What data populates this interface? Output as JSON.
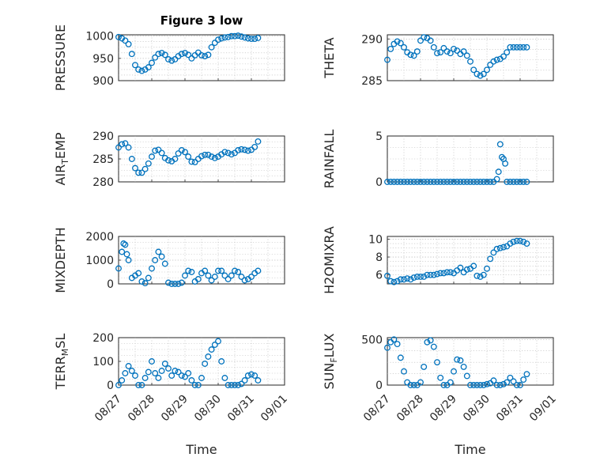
{
  "figure": {
    "title": "Figure 3 low",
    "marker_color": "#0072BD",
    "marker_style": "open-circle"
  },
  "chart_data": [
    {
      "type": "scatter",
      "ylabel": "PRESSURE",
      "ylabel_base": "PRESSURE",
      "ylabel_sub": "",
      "title": "Figure 3 low",
      "yticks": [
        900,
        950,
        1000
      ],
      "yticklabels": [
        "900",
        "950",
        "1000"
      ],
      "ylim": [
        900,
        1003
      ],
      "xlim": [
        0,
        5
      ],
      "xticks": [
        0,
        1,
        2,
        3,
        4,
        5
      ],
      "grid": true,
      "x": [
        0.0,
        0.1,
        0.2,
        0.3,
        0.4,
        0.5,
        0.6,
        0.7,
        0.8,
        0.9,
        1.0,
        1.1,
        1.2,
        1.3,
        1.4,
        1.5,
        1.6,
        1.7,
        1.8,
        1.9,
        2.0,
        2.1,
        2.2,
        2.3,
        2.4,
        2.5,
        2.6,
        2.7,
        2.8,
        2.9,
        3.0,
        3.1,
        3.2,
        3.3,
        3.4,
        3.5,
        3.6,
        3.7,
        3.8,
        3.9,
        4.0,
        4.1,
        4.2
      ],
      "y": [
        998,
        995,
        990,
        982,
        960,
        935,
        925,
        922,
        925,
        930,
        940,
        952,
        960,
        962,
        958,
        948,
        945,
        948,
        955,
        960,
        962,
        958,
        950,
        957,
        963,
        957,
        955,
        958,
        975,
        985,
        992,
        995,
        997,
        998,
        1000,
        1000,
        1001,
        999,
        997,
        995,
        994,
        994,
        996
      ]
    },
    {
      "type": "scatter",
      "ylabel": "THETA",
      "ylabel_base": "THETA",
      "ylabel_sub": "",
      "yticks": [
        285,
        290
      ],
      "yticklabels": [
        "285",
        "290"
      ],
      "ylim": [
        285,
        290.5
      ],
      "xlim": [
        0,
        5
      ],
      "xticks": [
        0,
        1,
        2,
        3,
        4,
        5
      ],
      "grid": true,
      "x": [
        0.0,
        0.1,
        0.2,
        0.3,
        0.4,
        0.5,
        0.6,
        0.7,
        0.8,
        0.9,
        1.0,
        1.1,
        1.2,
        1.3,
        1.4,
        1.5,
        1.6,
        1.7,
        1.8,
        1.9,
        2.0,
        2.1,
        2.2,
        2.3,
        2.4,
        2.5,
        2.6,
        2.7,
        2.8,
        2.9,
        3.0,
        3.1,
        3.2,
        3.3,
        3.4,
        3.5,
        3.6,
        3.7,
        3.8,
        3.9,
        4.0,
        4.1,
        4.2
      ],
      "y": [
        287.5,
        288.8,
        289.4,
        289.7,
        289.5,
        289.0,
        288.4,
        288.1,
        288.0,
        288.5,
        289.8,
        290.2,
        290.1,
        289.8,
        289.0,
        288.3,
        288.4,
        288.9,
        288.5,
        288.3,
        288.8,
        288.6,
        288.2,
        288.5,
        288.0,
        287.3,
        286.3,
        285.8,
        285.6,
        285.8,
        286.3,
        286.9,
        287.3,
        287.5,
        287.6,
        287.9,
        288.4,
        289.0,
        289.0,
        289.0,
        289.0,
        289.0,
        289.0
      ]
    },
    {
      "type": "scatter",
      "ylabel": "AIR_TEMP",
      "ylabel_base": "AIR",
      "ylabel_sub": "T",
      "ylabel_rest": "EMP",
      "yticks": [
        280,
        285,
        290
      ],
      "yticklabels": [
        "280",
        "285",
        "290"
      ],
      "ylim": [
        280,
        290
      ],
      "xlim": [
        0,
        5
      ],
      "xticks": [
        0,
        1,
        2,
        3,
        4,
        5
      ],
      "grid": true,
      "x": [
        0.0,
        0.1,
        0.2,
        0.3,
        0.4,
        0.5,
        0.6,
        0.7,
        0.8,
        0.9,
        1.0,
        1.1,
        1.2,
        1.3,
        1.4,
        1.5,
        1.6,
        1.7,
        1.8,
        1.9,
        2.0,
        2.1,
        2.2,
        2.3,
        2.4,
        2.5,
        2.6,
        2.7,
        2.8,
        2.9,
        3.0,
        3.1,
        3.2,
        3.3,
        3.4,
        3.5,
        3.6,
        3.7,
        3.8,
        3.9,
        4.0,
        4.1,
        4.2
      ],
      "y": [
        287.5,
        288.2,
        288.4,
        287.5,
        285.0,
        283.0,
        282.0,
        282.0,
        282.8,
        284.0,
        285.5,
        286.8,
        287.0,
        286.3,
        285.2,
        284.7,
        284.5,
        285.0,
        286.2,
        286.9,
        286.5,
        285.5,
        284.4,
        284.3,
        285.0,
        285.6,
        285.9,
        285.9,
        285.5,
        285.2,
        285.5,
        286.0,
        286.5,
        286.3,
        286.0,
        286.3,
        286.9,
        287.1,
        287.0,
        286.8,
        287.0,
        287.6,
        288.8
      ]
    },
    {
      "type": "scatter",
      "ylabel": "RAINFALL",
      "ylabel_base": "RAINFALL",
      "ylabel_sub": "",
      "yticks": [
        0,
        5
      ],
      "yticklabels": [
        "0",
        "5"
      ],
      "ylim": [
        0,
        5
      ],
      "xlim": [
        0,
        5
      ],
      "xticks": [
        0,
        1,
        2,
        3,
        4,
        5
      ],
      "grid": true,
      "x": [
        0.0,
        0.1,
        0.2,
        0.3,
        0.4,
        0.5,
        0.6,
        0.7,
        0.8,
        0.9,
        1.0,
        1.1,
        1.2,
        1.3,
        1.4,
        1.5,
        1.6,
        1.7,
        1.8,
        1.9,
        2.0,
        2.1,
        2.2,
        2.3,
        2.4,
        2.5,
        2.6,
        2.7,
        2.8,
        2.9,
        3.0,
        3.1,
        3.2,
        3.3,
        3.35,
        3.4,
        3.45,
        3.5,
        3.55,
        3.6,
        3.7,
        3.8,
        3.9,
        4.0,
        4.1,
        4.2
      ],
      "y": [
        0,
        0,
        0,
        0,
        0,
        0,
        0,
        0,
        0,
        0,
        0,
        0,
        0,
        0,
        0,
        0,
        0,
        0,
        0,
        0,
        0,
        0,
        0,
        0,
        0,
        0,
        0,
        0,
        0,
        0,
        0,
        0,
        0,
        0.3,
        1.1,
        4.1,
        2.7,
        2.5,
        2.0,
        0,
        0,
        0,
        0,
        0,
        0,
        0
      ]
    },
    {
      "type": "scatter",
      "ylabel": "MIXDEPTH",
      "ylabel_base": "MIXDEPTH",
      "ylabel_sub": "",
      "yticks": [
        0,
        1000,
        2000
      ],
      "yticklabels": [
        "0",
        "1000",
        "2000"
      ],
      "ylim": [
        0,
        2000
      ],
      "xlim": [
        0,
        5
      ],
      "xticks": [
        0,
        1,
        2,
        3,
        4,
        5
      ],
      "grid": true,
      "x": [
        0.0,
        0.1,
        0.15,
        0.2,
        0.25,
        0.3,
        0.4,
        0.5,
        0.6,
        0.7,
        0.8,
        0.9,
        1.0,
        1.1,
        1.2,
        1.3,
        1.4,
        1.5,
        1.6,
        1.7,
        1.8,
        1.9,
        2.0,
        2.1,
        2.2,
        2.3,
        2.4,
        2.5,
        2.6,
        2.7,
        2.8,
        2.9,
        3.0,
        3.1,
        3.2,
        3.3,
        3.4,
        3.5,
        3.6,
        3.7,
        3.8,
        3.9,
        4.0,
        4.1,
        4.2
      ],
      "y": [
        650,
        1350,
        1700,
        1650,
        1250,
        1000,
        250,
        350,
        450,
        100,
        30,
        250,
        650,
        1000,
        1350,
        1150,
        850,
        50,
        0,
        0,
        0,
        50,
        350,
        550,
        500,
        100,
        200,
        450,
        550,
        350,
        150,
        300,
        550,
        550,
        350,
        200,
        350,
        550,
        500,
        300,
        150,
        200,
        300,
        450,
        550
      ]
    },
    {
      "type": "scatter",
      "ylabel": "H2OMIXRA",
      "ylabel_base": "H2OMIXRA",
      "ylabel_sub": "",
      "yticks": [
        6,
        8,
        10
      ],
      "yticklabels": [
        "6",
        "8",
        "10"
      ],
      "ylim": [
        5,
        10.3
      ],
      "xlim": [
        0,
        5
      ],
      "xticks": [
        0,
        1,
        2,
        3,
        4,
        5
      ],
      "grid": true,
      "x": [
        0.0,
        0.1,
        0.2,
        0.3,
        0.4,
        0.5,
        0.6,
        0.7,
        0.8,
        0.9,
        1.0,
        1.1,
        1.2,
        1.3,
        1.4,
        1.5,
        1.6,
        1.7,
        1.8,
        1.9,
        2.0,
        2.1,
        2.2,
        2.3,
        2.4,
        2.5,
        2.6,
        2.7,
        2.8,
        2.9,
        3.0,
        3.1,
        3.2,
        3.3,
        3.4,
        3.5,
        3.6,
        3.7,
        3.8,
        3.9,
        4.0,
        4.1,
        4.2
      ],
      "y": [
        5.9,
        5.3,
        5.2,
        5.3,
        5.5,
        5.5,
        5.6,
        5.5,
        5.7,
        5.8,
        5.8,
        5.8,
        6.0,
        6.0,
        6.0,
        6.1,
        6.2,
        6.2,
        6.3,
        6.3,
        6.2,
        6.5,
        6.8,
        6.3,
        6.6,
        6.7,
        7.0,
        5.9,
        5.8,
        6.0,
        6.7,
        7.8,
        8.5,
        8.9,
        9.0,
        9.1,
        9.2,
        9.5,
        9.7,
        9.8,
        9.8,
        9.7,
        9.5
      ]
    },
    {
      "type": "scatter",
      "ylabel": "TERR_MSL",
      "ylabel_base": "TERR",
      "ylabel_sub": "M",
      "ylabel_rest": "SL",
      "yticks": [
        0,
        100,
        200
      ],
      "yticklabels": [
        "0",
        "100",
        "200"
      ],
      "ylim": [
        0,
        200
      ],
      "xlim": [
        0,
        5
      ],
      "xticks": [
        0,
        1,
        2,
        3,
        4,
        5
      ],
      "grid": true,
      "xticklabels": [
        "08/27",
        "08/28",
        "08/29",
        "08/30",
        "08/31",
        "09/01"
      ],
      "xlabel": "Time",
      "x": [
        0.0,
        0.1,
        0.2,
        0.3,
        0.4,
        0.5,
        0.6,
        0.7,
        0.8,
        0.9,
        1.0,
        1.1,
        1.2,
        1.3,
        1.4,
        1.5,
        1.6,
        1.7,
        1.8,
        1.9,
        2.0,
        2.1,
        2.2,
        2.3,
        2.4,
        2.5,
        2.6,
        2.7,
        2.8,
        2.9,
        3.0,
        3.1,
        3.2,
        3.3,
        3.4,
        3.5,
        3.6,
        3.7,
        3.8,
        3.9,
        4.0,
        4.1,
        4.2
      ],
      "y": [
        0,
        20,
        50,
        80,
        60,
        40,
        0,
        0,
        30,
        55,
        100,
        50,
        30,
        60,
        90,
        70,
        40,
        60,
        55,
        40,
        35,
        50,
        20,
        0,
        0,
        30,
        90,
        120,
        150,
        170,
        185,
        100,
        30,
        0,
        0,
        0,
        0,
        5,
        20,
        40,
        45,
        40,
        20
      ]
    },
    {
      "type": "scatter",
      "ylabel": "SUN_FLUX",
      "ylabel_base": "SUN",
      "ylabel_sub": "F",
      "ylabel_rest": "LUX",
      "yticks": [
        0,
        500
      ],
      "yticklabels": [
        "0",
        "500"
      ],
      "ylim": [
        0,
        520
      ],
      "xlim": [
        0,
        5
      ],
      "xticks": [
        0,
        1,
        2,
        3,
        4,
        5
      ],
      "grid": true,
      "xticklabels": [
        "08/27",
        "08/28",
        "08/29",
        "08/30",
        "08/31",
        "09/01"
      ],
      "xlabel": "Time",
      "x": [
        0.0,
        0.1,
        0.2,
        0.3,
        0.4,
        0.5,
        0.6,
        0.7,
        0.8,
        0.9,
        1.0,
        1.1,
        1.2,
        1.3,
        1.4,
        1.5,
        1.6,
        1.7,
        1.8,
        1.9,
        2.0,
        2.1,
        2.2,
        2.3,
        2.4,
        2.5,
        2.6,
        2.7,
        2.8,
        2.9,
        3.0,
        3.1,
        3.2,
        3.3,
        3.4,
        3.5,
        3.6,
        3.7,
        3.8,
        3.9,
        4.0,
        4.1,
        4.2
      ],
      "y": [
        410,
        470,
        500,
        450,
        300,
        150,
        30,
        0,
        0,
        0,
        30,
        200,
        470,
        490,
        420,
        250,
        80,
        0,
        0,
        30,
        150,
        280,
        270,
        200,
        100,
        0,
        0,
        0,
        0,
        0,
        10,
        20,
        50,
        0,
        0,
        10,
        30,
        80,
        40,
        0,
        0,
        60,
        120
      ]
    }
  ]
}
